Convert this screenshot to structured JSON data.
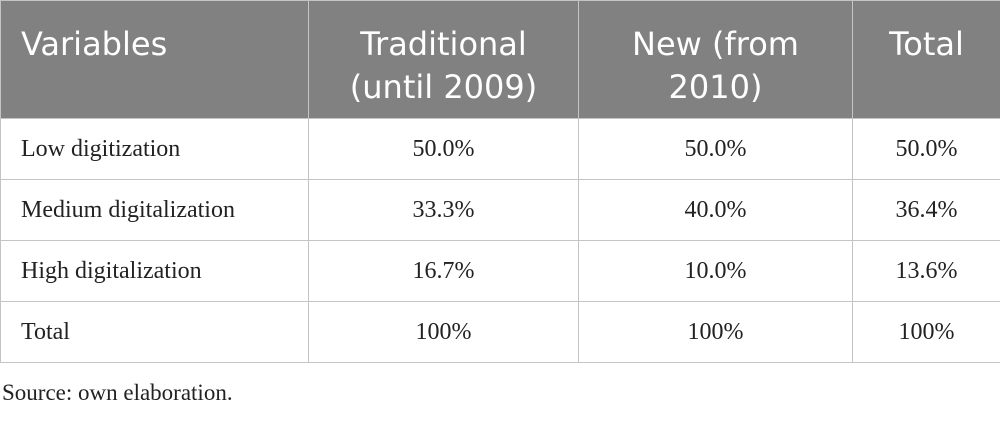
{
  "table": {
    "columns": [
      "Variables",
      "Traditional (until 2009)",
      "New (from 2010)",
      "Total"
    ],
    "rows": [
      [
        "Low digitization",
        "50.0%",
        "50.0%",
        "50.0%"
      ],
      [
        "Medium digitalization",
        "33.3%",
        "40.0%",
        "36.4%"
      ],
      [
        "High digitalization",
        "16.7%",
        "10.0%",
        "13.6%"
      ],
      [
        "Total",
        "100%",
        "100%",
        "100%"
      ]
    ]
  },
  "footnote": "Source: own elaboration."
}
